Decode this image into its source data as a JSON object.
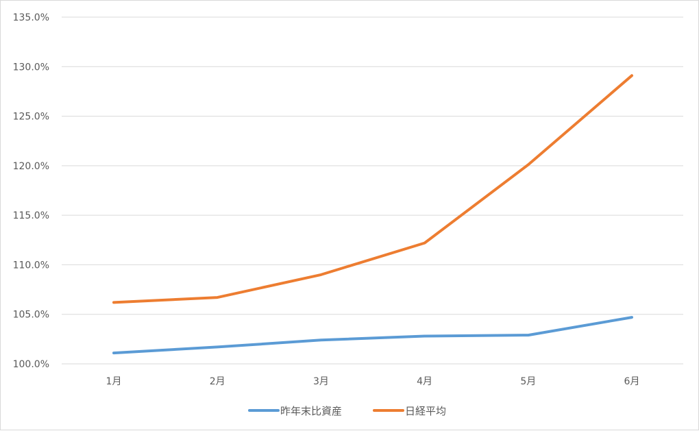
{
  "chart_data": {
    "type": "line",
    "categories": [
      "1月",
      "2月",
      "3月",
      "4月",
      "5月",
      "6月"
    ],
    "series": [
      {
        "name": "昨年末比資産",
        "color": "#5b9bd5",
        "values": [
          101.1,
          101.7,
          102.4,
          102.8,
          102.9,
          104.7
        ]
      },
      {
        "name": "日経平均",
        "color": "#ed7d31",
        "values": [
          106.2,
          106.7,
          109.0,
          112.2,
          120.1,
          129.1
        ]
      }
    ],
    "y_ticks": [
      "100.0%",
      "105.0%",
      "110.0%",
      "115.0%",
      "120.0%",
      "125.0%",
      "130.0%",
      "135.0%"
    ],
    "ylim": [
      100,
      135
    ],
    "y_unit": "%",
    "grid": "horizontal",
    "legend_position": "bottom",
    "gridline_color": "#d9d9d9"
  }
}
